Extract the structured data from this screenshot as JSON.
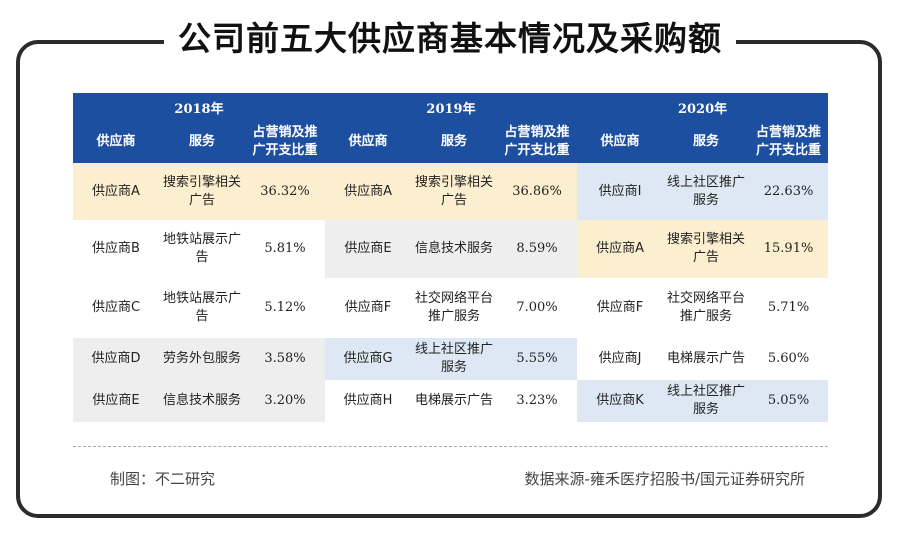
{
  "title": "公司前五大供应商基本情况及采购额",
  "years": [
    "2018年",
    "2019年",
    "2020年"
  ],
  "headers": [
    "供应商",
    "服务",
    "占营销及推广开支比重"
  ],
  "rows": [
    [
      {
        "s": "供应商A",
        "v": "搜索引擎相关广告",
        "p": "36.32%",
        "bg": "#fcefcf"
      },
      {
        "s": "供应商A",
        "v": "搜索引擎相关广告",
        "p": "36.86%",
        "bg": "#fcefcf"
      },
      {
        "s": "供应商I",
        "v": "线上社区推广服务",
        "p": "22.63%",
        "bg": "#dde8f4"
      }
    ],
    [
      {
        "s": "供应商B",
        "v": "地铁站展示广告",
        "p": "5.81%",
        "bg": "#ffffff"
      },
      {
        "s": "供应商E",
        "v": "信息技术服务",
        "p": "8.59%",
        "bg": "#eeeeee"
      },
      {
        "s": "供应商A",
        "v": "搜索引擎相关广告",
        "p": "15.91%",
        "bg": "#fcefcf"
      }
    ],
    [
      {
        "s": "供应商C",
        "v": "地铁站展示广告",
        "p": "5.12%",
        "bg": "#ffffff"
      },
      {
        "s": "供应商F",
        "v": "社交网络平台推广服务",
        "p": "7.00%",
        "bg": "#ffffff"
      },
      {
        "s": "供应商F",
        "v": "社交网络平台推广服务",
        "p": "5.71%",
        "bg": "#ffffff"
      }
    ],
    [
      {
        "s": "供应商D",
        "v": "劳务外包服务",
        "p": "3.58%",
        "bg": "#eeeeee"
      },
      {
        "s": "供应商G",
        "v": "线上社区推广服务",
        "p": "5.55%",
        "bg": "#dde8f4"
      },
      {
        "s": "供应商J",
        "v": "电梯展示广告",
        "p": "5.60%",
        "bg": "#ffffff"
      }
    ],
    [
      {
        "s": "供应商E",
        "v": "信息技术服务",
        "p": "3.20%",
        "bg": "#eeeeee"
      },
      {
        "s": "供应商H",
        "v": "电梯展示广告",
        "p": "3.23%",
        "bg": "#ffffff"
      },
      {
        "s": "供应商K",
        "v": "线上社区推广服务",
        "p": "5.05%",
        "bg": "#dde8f4"
      }
    ]
  ],
  "footer": {
    "maker": "制图：不二研究",
    "source": "数据来源-雍禾医疗招股书/国元证券研究所"
  }
}
